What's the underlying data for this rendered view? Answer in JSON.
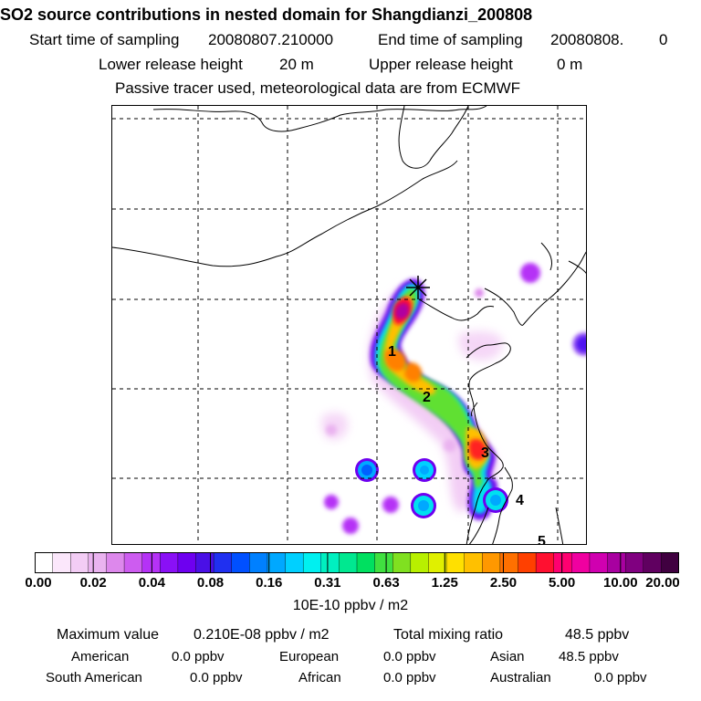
{
  "header": {
    "title": "SO2 source contributions in nested domain for Shangdianzi_200808",
    "start_label": "Start time of sampling",
    "start_value": "20080807.210000",
    "end_label": "End time of sampling",
    "end_value": "20080808.",
    "end_hour": "0",
    "lower_label": "Lower release height",
    "lower_value": "20 m",
    "upper_label": "Upper release height",
    "upper_value": "0 m",
    "note": "Passive tracer used, meteorological data are from ECMWF"
  },
  "chart_data": {
    "type": "heatmap",
    "title": "SO2 source contributions in nested domain for Shangdianzi_200808",
    "colorbar": {
      "ticks": [
        "0.00",
        "0.02",
        "0.04",
        "0.08",
        "0.16",
        "0.31",
        "0.63",
        "1.25",
        "2.50",
        "5.00",
        "10.00",
        "20.00"
      ],
      "units": "10E-10 ppbv / m2",
      "colors": [
        "#ffffff",
        "#fbe7fb",
        "#f3cdf5",
        "#eab3f0",
        "#dd88ec",
        "#cd5cf0",
        "#b532f6",
        "#8a10f6",
        "#6e00f0",
        "#4a10e6",
        "#2030f0",
        "#0050ff",
        "#0080ff",
        "#00a8ff",
        "#00d0ff",
        "#00f0f0",
        "#00f0c0",
        "#00e890",
        "#00e060",
        "#40e040",
        "#80e020",
        "#b8f000",
        "#e0f000",
        "#ffe000",
        "#ffc000",
        "#ff9800",
        "#ff7000",
        "#ff4000",
        "#ff1030",
        "#ff0070",
        "#f000a0",
        "#d000b0",
        "#a800a0",
        "#800080",
        "#600060",
        "#400040"
      ]
    },
    "region_labels": [
      "1",
      "2",
      "3",
      "4",
      "5"
    ],
    "receptor": "Shangdianzi"
  },
  "stats": {
    "max_label": "Maximum value",
    "max_value": "0.210E-08 ppbv / m2",
    "total_label": "Total mixing ratio",
    "total_value": "48.5 ppbv",
    "regions": [
      {
        "name": "American",
        "value": "0.0 ppbv"
      },
      {
        "name": "European",
        "value": "0.0 ppbv"
      },
      {
        "name": "Asian",
        "value": "48.5 ppbv"
      },
      {
        "name": "South American",
        "value": "0.0 ppbv"
      },
      {
        "name": "African",
        "value": "0.0 ppbv"
      },
      {
        "name": "Australian",
        "value": "0.0 ppbv"
      }
    ]
  }
}
